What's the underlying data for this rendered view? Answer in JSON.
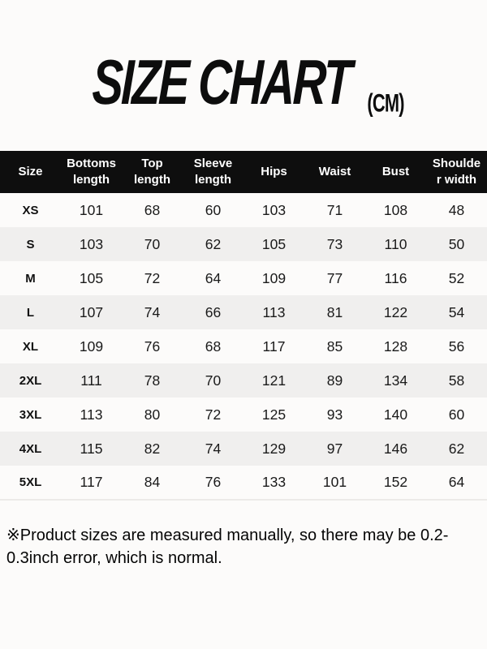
{
  "title": {
    "main": "SIZE CHART",
    "unit": "(CM)"
  },
  "note": "※Product sizes are measured manually, so there may be 0.2-0.3inch error, which is normal.",
  "colors": {
    "header_bg": "#0e0e0e",
    "row_alt": "#f0efee",
    "page_bg": "#fcfbfa"
  },
  "chart_data": {
    "type": "table",
    "title": "SIZE CHART (CM)",
    "columns": [
      {
        "label": "Size"
      },
      {
        "label": "Bottoms length",
        "lines": [
          "Bottoms",
          "length"
        ]
      },
      {
        "label": "Top length",
        "lines": [
          "Top",
          "length"
        ]
      },
      {
        "label": "Sleeve length",
        "lines": [
          "Sleeve",
          "length"
        ]
      },
      {
        "label": "Hips"
      },
      {
        "label": "Waist"
      },
      {
        "label": "Bust"
      },
      {
        "label": "Shoulder width",
        "lines": [
          "Shoulde",
          "r width"
        ]
      }
    ],
    "rows": [
      {
        "size": "XS",
        "values": [
          101,
          68,
          60,
          103,
          71,
          108,
          48
        ]
      },
      {
        "size": "S",
        "values": [
          103,
          70,
          62,
          105,
          73,
          110,
          50
        ]
      },
      {
        "size": "M",
        "values": [
          105,
          72,
          64,
          109,
          77,
          116,
          52
        ]
      },
      {
        "size": "L",
        "values": [
          107,
          74,
          66,
          113,
          81,
          122,
          54
        ]
      },
      {
        "size": "XL",
        "values": [
          109,
          76,
          68,
          117,
          85,
          128,
          56
        ]
      },
      {
        "size": "2XL",
        "values": [
          111,
          78,
          70,
          121,
          89,
          134,
          58
        ]
      },
      {
        "size": "3XL",
        "values": [
          113,
          80,
          72,
          125,
          93,
          140,
          60
        ]
      },
      {
        "size": "4XL",
        "values": [
          115,
          82,
          74,
          129,
          97,
          146,
          62
        ]
      },
      {
        "size": "5XL",
        "values": [
          117,
          84,
          76,
          133,
          101,
          152,
          64
        ]
      }
    ]
  }
}
